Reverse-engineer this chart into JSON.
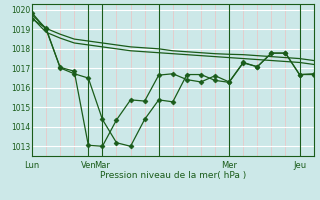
{
  "background_color": "#cce8e8",
  "plot_bg_color": "#cce8e8",
  "grid_major_color": "#ffffff",
  "grid_minor_color": "#e8c8c8",
  "line_color": "#1a5c1a",
  "xlabel": "Pression niveau de la mer( hPa )",
  "ylim": [
    1012.5,
    1020.3
  ],
  "yticks": [
    1013,
    1014,
    1015,
    1016,
    1017,
    1018,
    1019,
    1020
  ],
  "xlim": [
    0,
    20
  ],
  "day_positions": [
    0,
    4,
    5,
    9,
    14,
    19
  ],
  "day_labels": [
    "Lun",
    "Ven",
    "Mar",
    "",
    "Mer",
    "Jeu"
  ],
  "vline_positions": [
    4,
    5,
    9,
    14,
    19
  ],
  "series1_x": [
    0,
    1,
    2,
    3,
    4,
    5,
    6,
    7,
    8,
    9,
    10,
    11,
    12,
    13,
    14,
    15,
    16,
    17,
    18,
    19,
    20
  ],
  "series1_y": [
    1019.75,
    1019.05,
    1018.75,
    1018.5,
    1018.4,
    1018.3,
    1018.2,
    1018.1,
    1018.05,
    1018.0,
    1017.9,
    1017.85,
    1017.8,
    1017.75,
    1017.72,
    1017.7,
    1017.65,
    1017.6,
    1017.55,
    1017.5,
    1017.4
  ],
  "series2_x": [
    0,
    1,
    2,
    3,
    4,
    5,
    6,
    7,
    8,
    9,
    10,
    11,
    12,
    13,
    14,
    15,
    16,
    17,
    18,
    19,
    20
  ],
  "series2_y": [
    1019.6,
    1018.85,
    1018.55,
    1018.3,
    1018.2,
    1018.1,
    1018.0,
    1017.9,
    1017.85,
    1017.8,
    1017.75,
    1017.7,
    1017.65,
    1017.6,
    1017.55,
    1017.5,
    1017.45,
    1017.4,
    1017.35,
    1017.3,
    1017.2
  ],
  "series3_x": [
    0,
    1,
    2,
    3,
    4,
    5,
    6,
    7,
    8,
    9,
    10,
    11,
    12,
    13,
    14,
    15,
    16,
    17,
    18,
    19,
    20
  ],
  "series3_y": [
    1019.85,
    1019.0,
    1017.05,
    1016.85,
    1013.05,
    1013.0,
    1014.35,
    1015.38,
    1015.32,
    1016.65,
    1016.72,
    1016.42,
    1016.3,
    1016.62,
    1016.3,
    1017.3,
    1017.08,
    1017.78,
    1017.78,
    1016.68,
    1016.72
  ],
  "series4_x": [
    0,
    1,
    2,
    3,
    4,
    5,
    6,
    7,
    8,
    9,
    10,
    11,
    12,
    13,
    14,
    15,
    16,
    17,
    18,
    19,
    20
  ],
  "series4_y": [
    1019.55,
    1019.05,
    1017.02,
    1016.72,
    1016.5,
    1014.38,
    1013.18,
    1013.0,
    1014.38,
    1015.38,
    1015.28,
    1016.68,
    1016.68,
    1016.38,
    1016.28,
    1017.28,
    1017.08,
    1017.78,
    1017.78,
    1016.68,
    1016.68
  ]
}
